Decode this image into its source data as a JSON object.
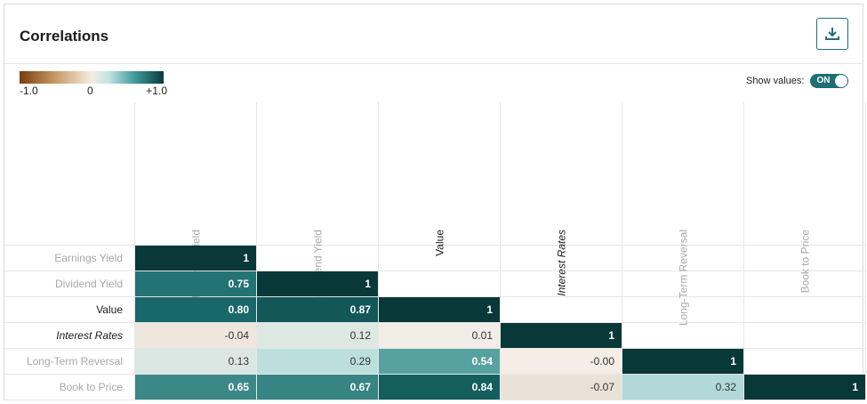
{
  "panel": {
    "title": "Correlations",
    "download_icon": "download-icon"
  },
  "legend": {
    "min_label": "-1.0",
    "mid_label": "0",
    "max_label": "+1.0",
    "colors": {
      "negative": "#7a3d0a",
      "neutral": "#f4ede3",
      "positive": "#0a3a3b"
    }
  },
  "show_values": {
    "label": "Show values:",
    "state_label": "ON",
    "color": "#1f6f75"
  },
  "factors": [
    {
      "label": "Earnings Yield",
      "style": "muted"
    },
    {
      "label": "Dividend Yield",
      "style": "muted"
    },
    {
      "label": "Value",
      "style": "dark"
    },
    {
      "label": "Interest Rates",
      "style": "dark-italic"
    },
    {
      "label": "Long-Term Reversal",
      "style": "muted"
    },
    {
      "label": "Book to Price",
      "style": "muted"
    }
  ],
  "matrix": {
    "rows": [
      {
        "cells": [
          {
            "text": "1",
            "value": 1.0
          }
        ]
      },
      {
        "cells": [
          {
            "text": "0.75",
            "value": 0.75
          },
          {
            "text": "1",
            "value": 1.0
          }
        ]
      },
      {
        "cells": [
          {
            "text": "0.80",
            "value": 0.8
          },
          {
            "text": "0.87",
            "value": 0.87
          },
          {
            "text": "1",
            "value": 1.0
          }
        ]
      },
      {
        "cells": [
          {
            "text": "-0.04",
            "value": -0.04
          },
          {
            "text": "0.12",
            "value": 0.12
          },
          {
            "text": "0.01",
            "value": 0.01
          },
          {
            "text": "1",
            "value": 1.0
          }
        ]
      },
      {
        "cells": [
          {
            "text": "0.13",
            "value": 0.13
          },
          {
            "text": "0.29",
            "value": 0.29
          },
          {
            "text": "0.54",
            "value": 0.54
          },
          {
            "text": "-0.00",
            "value": 0.0
          },
          {
            "text": "1",
            "value": 1.0
          }
        ]
      },
      {
        "cells": [
          {
            "text": "0.65",
            "value": 0.65
          },
          {
            "text": "0.67",
            "value": 0.67
          },
          {
            "text": "0.84",
            "value": 0.84
          },
          {
            "text": "-0.07",
            "value": -0.07
          },
          {
            "text": "0.32",
            "value": 0.32
          },
          {
            "text": "1",
            "value": 1.0
          }
        ]
      }
    ]
  }
}
